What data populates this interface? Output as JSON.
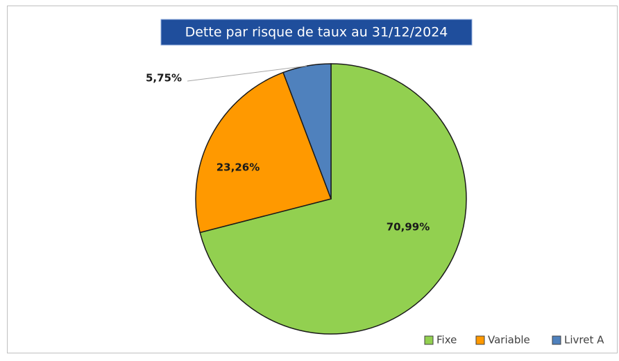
{
  "chart_data": {
    "type": "pie",
    "title": "Dette par risque de taux au 31/12/2024",
    "categories": [
      "Fixe",
      "Variable",
      "Livret A"
    ],
    "values": [
      70.99,
      23.26,
      5.75
    ],
    "value_labels": [
      "70,99%",
      "23,26%",
      "5,75%"
    ],
    "colors": [
      "#92d050",
      "#ff9900",
      "#4f81bd"
    ],
    "legend": "bottom-right"
  }
}
